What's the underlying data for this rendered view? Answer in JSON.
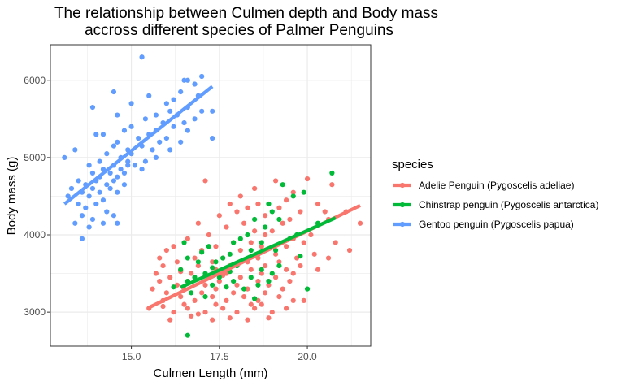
{
  "chart_data": {
    "type": "scatter",
    "title_lines": [
      "The relationship between Culmen depth and Body mass",
      "accross different species of Palmer Penguins"
    ],
    "xlabel": "Culmen Length (mm)",
    "ylabel": "Body mass (g)",
    "xlim": [
      12.7,
      21.8
    ],
    "ylim": [
      2560,
      6460
    ],
    "x_ticks": [
      15.0,
      17.5,
      20.0
    ],
    "x_tick_labels": [
      "15.0",
      "17.5",
      "20.0"
    ],
    "y_ticks": [
      3000,
      4000,
      5000,
      6000
    ],
    "y_tick_labels": [
      "3000",
      "4000",
      "5000",
      "6000"
    ],
    "grid": true,
    "legend": {
      "title": "species",
      "position": "right"
    },
    "series": [
      {
        "name": "Adelie Penguin (Pygoscelis adeliae)",
        "color": "#F8766D",
        "trend": {
          "x": [
            15.5,
            21.5
          ],
          "y": [
            3060,
            4380
          ]
        },
        "points": [
          [
            17.1,
            4700
          ],
          [
            19.1,
            4700
          ],
          [
            20.0,
            4725
          ],
          [
            20.7,
            4650
          ],
          [
            18.5,
            4600
          ],
          [
            19.6,
            4550
          ],
          [
            18.1,
            4500
          ],
          [
            19.4,
            4450
          ],
          [
            17.8,
            4400
          ],
          [
            18.6,
            4400
          ],
          [
            20.3,
            4400
          ],
          [
            18.3,
            4350
          ],
          [
            19.2,
            4350
          ],
          [
            18.0,
            4300
          ],
          [
            19.8,
            4300
          ],
          [
            20.5,
            4300
          ],
          [
            21.1,
            4300
          ],
          [
            17.5,
            4250
          ],
          [
            18.8,
            4250
          ],
          [
            19.5,
            4200
          ],
          [
            20.6,
            4200
          ],
          [
            16.9,
            4150
          ],
          [
            18.2,
            4150
          ],
          [
            19.3,
            4150
          ],
          [
            21.5,
            4150
          ],
          [
            17.7,
            4100
          ],
          [
            18.5,
            4050
          ],
          [
            19.0,
            4050
          ],
          [
            20.1,
            4000
          ],
          [
            17.2,
            4000
          ],
          [
            18.8,
            4000
          ],
          [
            19.6,
            3950
          ],
          [
            16.6,
            3950
          ],
          [
            17.9,
            3900
          ],
          [
            18.4,
            3900
          ],
          [
            19.9,
            3900
          ],
          [
            20.8,
            3900
          ],
          [
            16.2,
            3850
          ],
          [
            17.4,
            3850
          ],
          [
            18.7,
            3850
          ],
          [
            19.4,
            3850
          ],
          [
            21.2,
            3800
          ],
          [
            16.0,
            3800
          ],
          [
            17.0,
            3800
          ],
          [
            18.1,
            3800
          ],
          [
            19.1,
            3750
          ],
          [
            20.2,
            3750
          ],
          [
            15.8,
            3700
          ],
          [
            16.8,
            3700
          ],
          [
            17.6,
            3700
          ],
          [
            18.6,
            3700
          ],
          [
            19.7,
            3700
          ],
          [
            20.6,
            3700
          ],
          [
            16.3,
            3650
          ],
          [
            17.3,
            3650
          ],
          [
            18.3,
            3650
          ],
          [
            19.2,
            3650
          ],
          [
            15.9,
            3600
          ],
          [
            16.9,
            3600
          ],
          [
            17.8,
            3600
          ],
          [
            18.8,
            3600
          ],
          [
            19.8,
            3600
          ],
          [
            16.4,
            3550
          ],
          [
            17.4,
            3550
          ],
          [
            18.4,
            3550
          ],
          [
            19.4,
            3550
          ],
          [
            20.3,
            3550
          ],
          [
            15.7,
            3500
          ],
          [
            16.7,
            3500
          ],
          [
            17.7,
            3500
          ],
          [
            18.7,
            3500
          ],
          [
            19.6,
            3500
          ],
          [
            16.1,
            3450
          ],
          [
            17.2,
            3450
          ],
          [
            18.1,
            3450
          ],
          [
            19.1,
            3450
          ],
          [
            15.8,
            3400
          ],
          [
            16.6,
            3400
          ],
          [
            17.5,
            3400
          ],
          [
            18.6,
            3400
          ],
          [
            19.5,
            3400
          ],
          [
            16.3,
            3350
          ],
          [
            17.1,
            3350
          ],
          [
            18.0,
            3350
          ],
          [
            18.9,
            3350
          ],
          [
            15.6,
            3300
          ],
          [
            16.5,
            3300
          ],
          [
            17.4,
            3300
          ],
          [
            18.3,
            3300
          ],
          [
            19.3,
            3300
          ],
          [
            16.0,
            3250
          ],
          [
            17.0,
            3250
          ],
          [
            17.9,
            3250
          ],
          [
            18.8,
            3250
          ],
          [
            16.4,
            3200
          ],
          [
            17.3,
            3200
          ],
          [
            18.2,
            3200
          ],
          [
            19.2,
            3200
          ],
          [
            15.9,
            3150
          ],
          [
            16.8,
            3150
          ],
          [
            17.7,
            3150
          ],
          [
            18.6,
            3150
          ],
          [
            19.6,
            3150
          ],
          [
            16.5,
            3100
          ],
          [
            17.4,
            3100
          ],
          [
            18.4,
            3100
          ],
          [
            15.5,
            3050
          ],
          [
            16.6,
            3050
          ],
          [
            17.6,
            3050
          ],
          [
            18.5,
            3050
          ],
          [
            19.4,
            3050
          ],
          [
            16.2,
            3000
          ],
          [
            17.1,
            3000
          ],
          [
            18.0,
            3000
          ],
          [
            19.0,
            3000
          ],
          [
            16.7,
            2950
          ],
          [
            17.8,
            2925
          ],
          [
            18.9,
            2925
          ],
          [
            16.1,
            2900
          ],
          [
            17.3,
            2900
          ],
          [
            18.3,
            2900
          ],
          [
            15.9,
            3075
          ],
          [
            16.9,
            2975
          ],
          [
            18.7,
            3100
          ],
          [
            19.9,
            3150
          ],
          [
            16.4,
            3525
          ],
          [
            17.6,
            3475
          ]
        ]
      },
      {
        "name": "Chinstrap penguin (Pygoscelis antarctica)",
        "color": "#00BA38",
        "trend": {
          "x": [
            16.4,
            20.8
          ],
          "y": [
            3320,
            4220
          ]
        },
        "points": [
          [
            20.7,
            4800
          ],
          [
            19.3,
            4650
          ],
          [
            19.9,
            4550
          ],
          [
            19.6,
            4500
          ],
          [
            18.9,
            4400
          ],
          [
            19.0,
            4300
          ],
          [
            18.5,
            4200
          ],
          [
            19.2,
            4200
          ],
          [
            20.3,
            4150
          ],
          [
            18.8,
            4100
          ],
          [
            19.7,
            4000
          ],
          [
            18.3,
            4000
          ],
          [
            19.5,
            3950
          ],
          [
            18.1,
            3950
          ],
          [
            18.7,
            3900
          ],
          [
            17.9,
            3900
          ],
          [
            16.5,
            3900
          ],
          [
            17.2,
            3850
          ],
          [
            19.1,
            3800
          ],
          [
            18.4,
            3800
          ],
          [
            17.0,
            3775
          ],
          [
            18.6,
            3750
          ],
          [
            17.8,
            3750
          ],
          [
            19.8,
            3725
          ],
          [
            17.6,
            3700
          ],
          [
            16.6,
            3700
          ],
          [
            18.2,
            3675
          ],
          [
            17.4,
            3650
          ],
          [
            16.9,
            3650
          ],
          [
            19.2,
            3600
          ],
          [
            18.0,
            3600
          ],
          [
            17.3,
            3575
          ],
          [
            16.4,
            3550
          ],
          [
            18.7,
            3550
          ],
          [
            17.8,
            3525
          ],
          [
            19.0,
            3500
          ],
          [
            17.1,
            3500
          ],
          [
            18.4,
            3450
          ],
          [
            16.8,
            3450
          ],
          [
            17.5,
            3450
          ],
          [
            17.9,
            3400
          ],
          [
            18.9,
            3400
          ],
          [
            16.6,
            3400
          ],
          [
            17.3,
            3350
          ],
          [
            18.6,
            3350
          ],
          [
            16.2,
            3325
          ],
          [
            17.7,
            3325
          ],
          [
            18.2,
            3300
          ],
          [
            20.0,
            3300
          ],
          [
            16.7,
            3250
          ],
          [
            17.1,
            3200
          ],
          [
            18.5,
            3175
          ],
          [
            16.6,
            2700
          ]
        ]
      },
      {
        "name": "Gentoo penguin (Pygoscelis papua)",
        "color": "#619CFF",
        "trend": {
          "x": [
            13.1,
            17.3
          ],
          "y": [
            4400,
            5920
          ]
        },
        "points": [
          [
            15.3,
            6300
          ],
          [
            16.5,
            6000
          ],
          [
            16.6,
            6000
          ],
          [
            17.0,
            6050
          ],
          [
            16.8,
            5950
          ],
          [
            16.4,
            5850
          ],
          [
            14.5,
            5850
          ],
          [
            15.5,
            5800
          ],
          [
            16.9,
            5800
          ],
          [
            16.2,
            5750
          ],
          [
            16.0,
            5700
          ],
          [
            15.0,
            5700
          ],
          [
            13.9,
            5650
          ],
          [
            16.6,
            5650
          ],
          [
            16.1,
            5600
          ],
          [
            17.0,
            5600
          ],
          [
            17.3,
            5600
          ],
          [
            14.6,
            5550
          ],
          [
            15.7,
            5550
          ],
          [
            16.3,
            5550
          ],
          [
            15.4,
            5500
          ],
          [
            16.8,
            5500
          ],
          [
            15.9,
            5450
          ],
          [
            16.5,
            5450
          ],
          [
            15.0,
            5400
          ],
          [
            16.2,
            5400
          ],
          [
            14.8,
            5350
          ],
          [
            15.7,
            5350
          ],
          [
            16.6,
            5350
          ],
          [
            14.0,
            5300
          ],
          [
            14.2,
            5300
          ],
          [
            15.5,
            5300
          ],
          [
            17.3,
            5250
          ],
          [
            15.2,
            5250
          ],
          [
            16.0,
            5250
          ],
          [
            14.6,
            5200
          ],
          [
            15.8,
            5200
          ],
          [
            16.4,
            5200
          ],
          [
            14.5,
            5150
          ],
          [
            15.3,
            5150
          ],
          [
            13.4,
            5100
          ],
          [
            14.9,
            5100
          ],
          [
            15.6,
            5100
          ],
          [
            16.1,
            5100
          ],
          [
            14.3,
            5050
          ],
          [
            15.0,
            5050
          ],
          [
            13.1,
            5000
          ],
          [
            14.7,
            5000
          ],
          [
            15.7,
            5000
          ],
          [
            14.1,
            4950
          ],
          [
            14.9,
            4950
          ],
          [
            15.4,
            4950
          ],
          [
            13.8,
            4900
          ],
          [
            14.5,
            4900
          ],
          [
            15.1,
            4900
          ],
          [
            14.2,
            4850
          ],
          [
            14.7,
            4850
          ],
          [
            15.3,
            4850
          ],
          [
            13.9,
            4800
          ],
          [
            14.4,
            4800
          ],
          [
            14.8,
            4800
          ],
          [
            14.1,
            4750
          ],
          [
            14.6,
            4750
          ],
          [
            13.5,
            4700
          ],
          [
            14.0,
            4700
          ],
          [
            14.5,
            4700
          ],
          [
            13.7,
            4650
          ],
          [
            14.3,
            4650
          ],
          [
            14.8,
            4650
          ],
          [
            13.3,
            4600
          ],
          [
            13.9,
            4600
          ],
          [
            14.4,
            4600
          ],
          [
            13.6,
            4550
          ],
          [
            14.1,
            4550
          ],
          [
            14.6,
            4550
          ],
          [
            13.2,
            4500
          ],
          [
            13.8,
            4500
          ],
          [
            14.2,
            4450
          ],
          [
            13.5,
            4400
          ],
          [
            14.0,
            4400
          ],
          [
            13.7,
            4350
          ],
          [
            14.3,
            4300
          ],
          [
            13.6,
            4250
          ],
          [
            14.5,
            4250
          ],
          [
            13.9,
            4200
          ],
          [
            13.4,
            4150
          ],
          [
            14.2,
            4150
          ],
          [
            13.8,
            4100
          ],
          [
            14.6,
            4150
          ],
          [
            13.6,
            3950
          ],
          [
            14.9,
            4900
          ]
        ]
      }
    ]
  }
}
